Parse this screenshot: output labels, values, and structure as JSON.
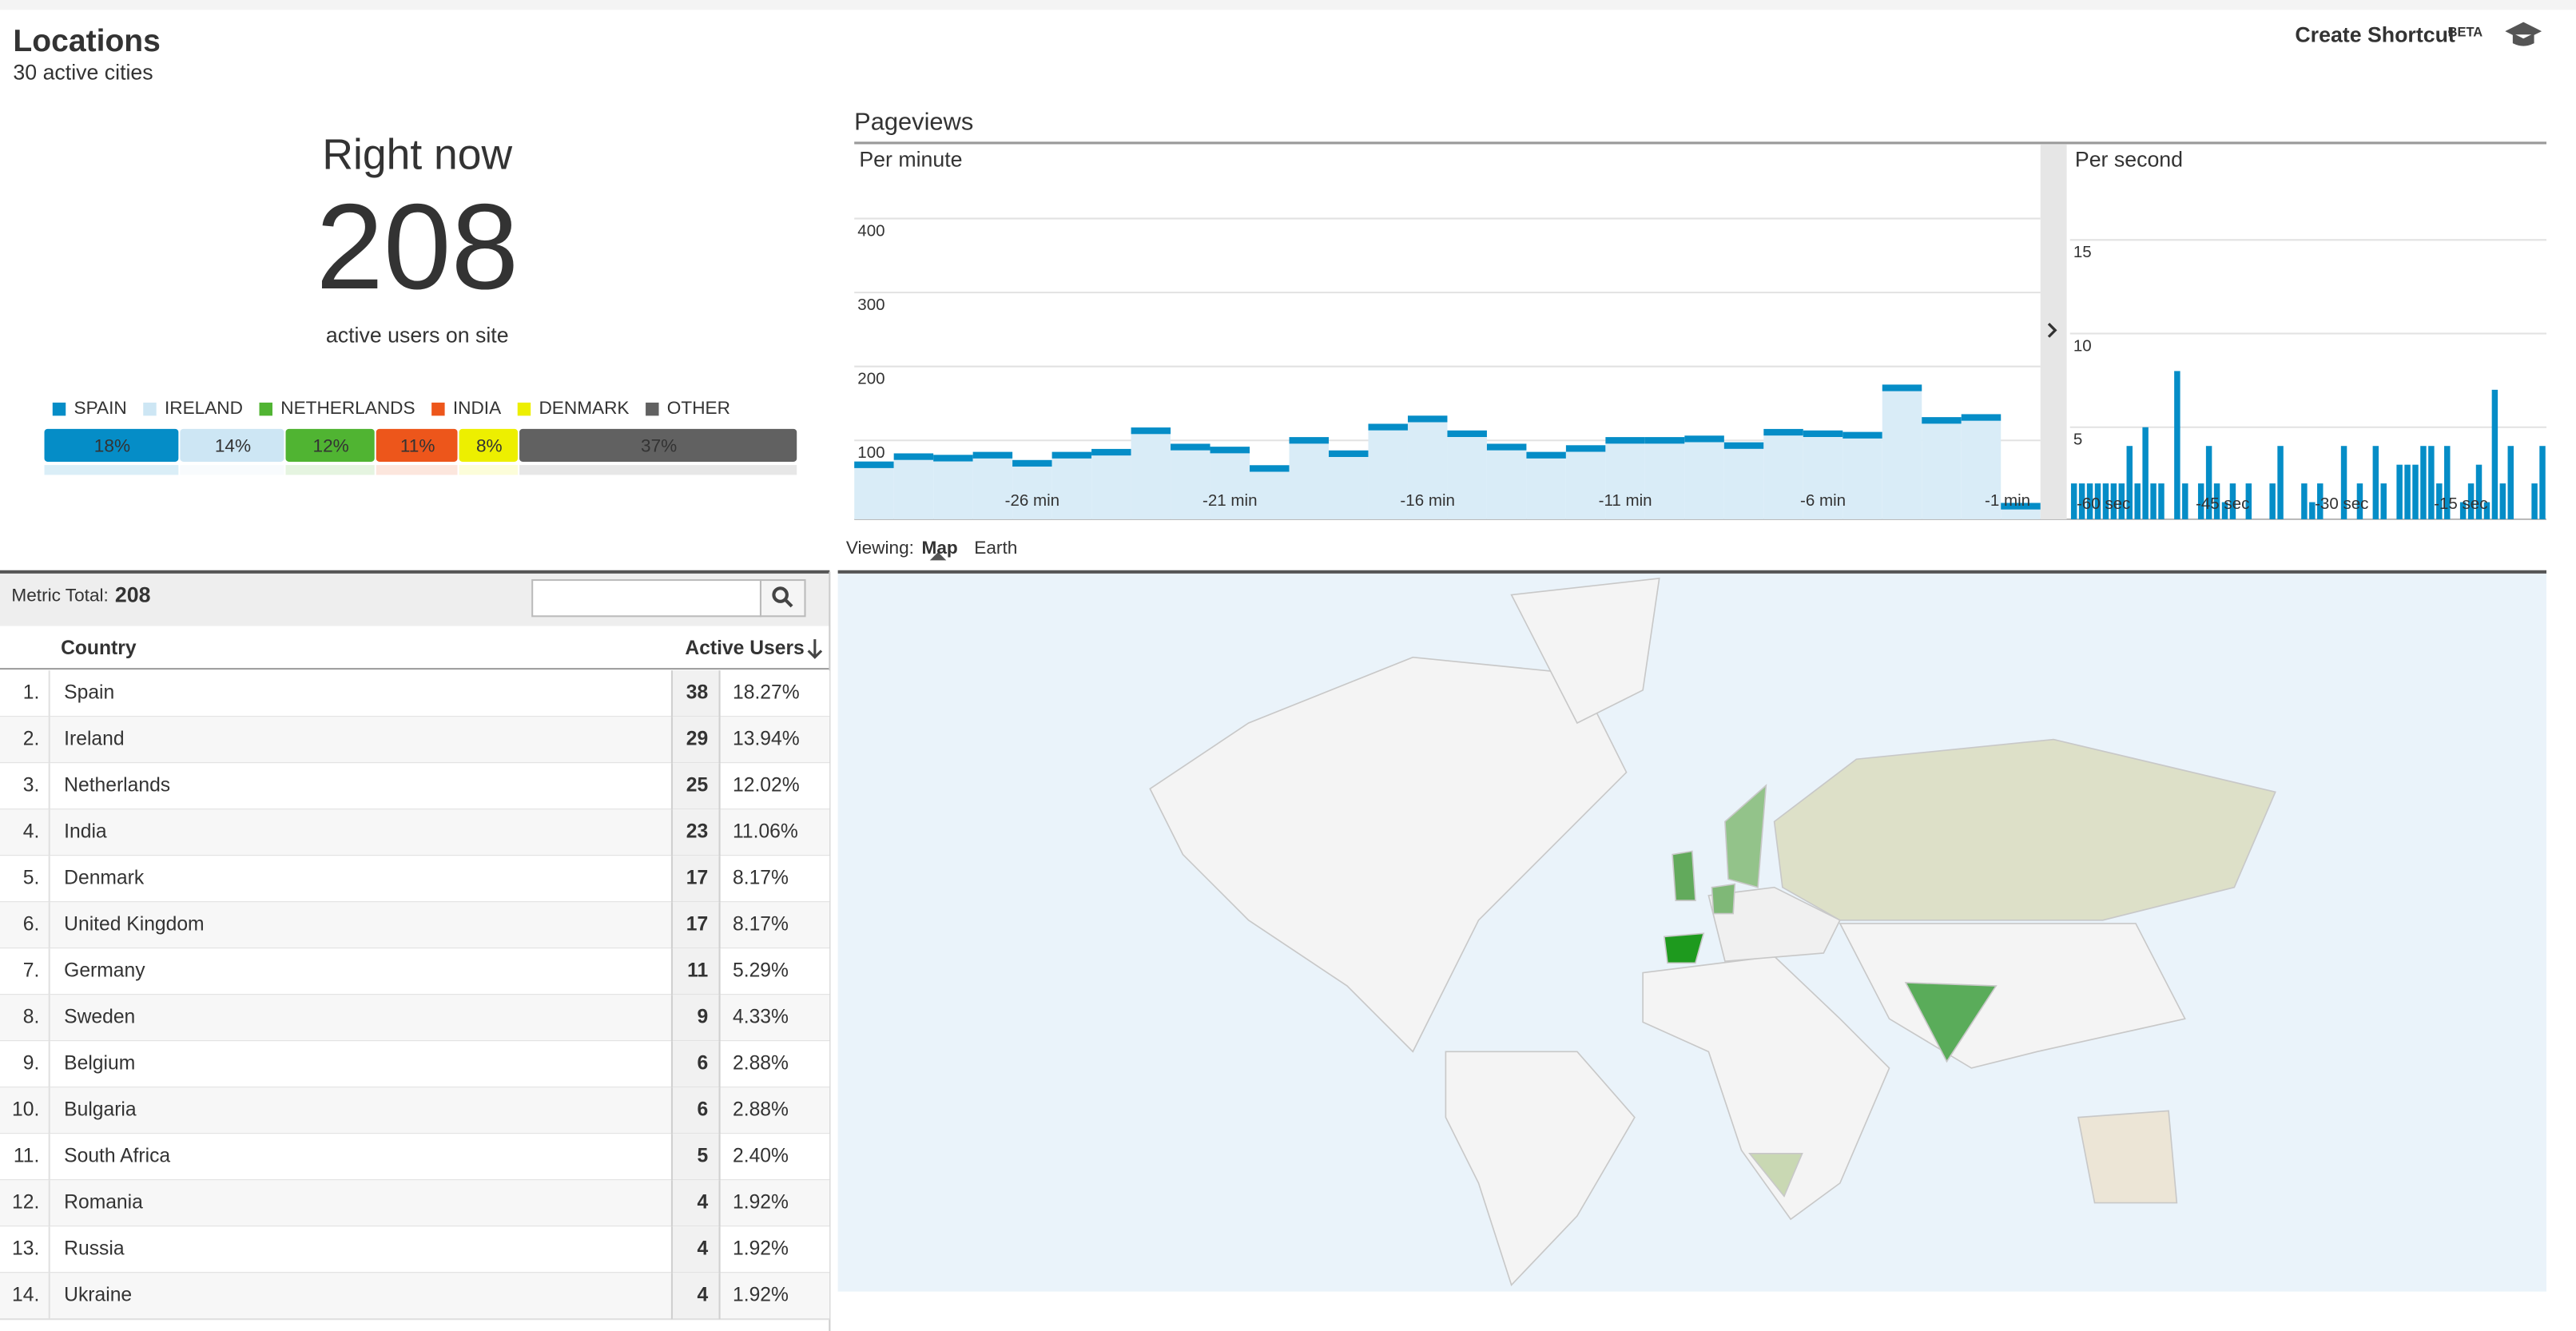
{
  "header": {
    "title": "Locations",
    "subtitle": "30 active cities",
    "shortcut": "Create Shortcut",
    "badge": "BETA"
  },
  "right_now": {
    "heading": "Right now",
    "count": 208,
    "caption": "active users on site"
  },
  "pageviews": {
    "title": "Pageviews"
  },
  "chart_data": [
    {
      "type": "stacked_bar",
      "series": [
        {
          "name": "SPAIN",
          "color": "#058dc7",
          "values": [
            18
          ],
          "value_labels": [
            "18%"
          ]
        },
        {
          "name": "IRELAND",
          "color": "#cde6f4",
          "values": [
            14
          ],
          "value_labels": [
            "14%"
          ]
        },
        {
          "name": "NETHERLANDS",
          "color": "#50b432",
          "values": [
            12
          ],
          "value_labels": [
            "12%"
          ]
        },
        {
          "name": "INDIA",
          "color": "#ed561b",
          "values": [
            11
          ],
          "value_labels": [
            "11%"
          ]
        },
        {
          "name": "DENMARK",
          "color": "#edef00",
          "values": [
            8
          ],
          "value_labels": [
            "8%"
          ]
        },
        {
          "name": "OTHER",
          "color": "#616161",
          "values": [
            37
          ],
          "value_labels": [
            "37%"
          ]
        }
      ]
    },
    {
      "type": "step",
      "title": "Per minute",
      "color": "#058dc7",
      "categories": [
        null,
        null,
        null,
        null,
        "-26 min",
        null,
        null,
        null,
        null,
        "-21 min",
        null,
        null,
        null,
        null,
        "-16 min",
        null,
        null,
        null,
        null,
        "-11 min",
        null,
        null,
        null,
        null,
        "-6 min",
        null,
        null,
        null,
        null,
        "-1 min"
      ],
      "values": [
        67,
        78,
        76,
        80,
        69,
        80,
        84,
        113,
        91,
        87,
        62,
        100,
        82,
        118,
        129,
        109,
        91,
        80,
        89,
        100,
        100,
        102,
        93,
        111,
        109,
        107,
        171,
        127,
        131,
        11
      ],
      "ylim": [
        0,
        500
      ],
      "yticks": [
        100,
        200,
        300,
        400
      ],
      "grid": true
    },
    {
      "type": "bar",
      "title": "Per second",
      "color": "#058dc7",
      "categories": [
        "-60 sec",
        null,
        null,
        null,
        null,
        null,
        null,
        null,
        null,
        null,
        null,
        null,
        null,
        null,
        null,
        "-45 sec",
        null,
        null,
        null,
        null,
        null,
        null,
        null,
        null,
        null,
        null,
        null,
        null,
        null,
        null,
        "-30 sec",
        null,
        null,
        null,
        null,
        null,
        null,
        null,
        null,
        null,
        null,
        null,
        null,
        null,
        null,
        "-15 sec",
        null,
        null,
        null,
        null,
        null,
        null,
        null,
        null,
        null,
        null,
        null,
        null,
        null,
        null
      ],
      "values": [
        2,
        2,
        2,
        2,
        2,
        2,
        2,
        4,
        2,
        5,
        2,
        2,
        0,
        8,
        2,
        0,
        2,
        4,
        2,
        1,
        2,
        0,
        2,
        0,
        0,
        2,
        4,
        0,
        0,
        2,
        1,
        2,
        0,
        0,
        4,
        0,
        2,
        0,
        4,
        2,
        0,
        3,
        3,
        3,
        4,
        4,
        2,
        4,
        0,
        1,
        2,
        3,
        1,
        7,
        2,
        4,
        0,
        0,
        2,
        4
      ],
      "ylim": [
        0,
        20
      ],
      "yticks": [
        5,
        10,
        15
      ],
      "grid": true
    }
  ],
  "map": {
    "viewing_label": "Viewing:",
    "tabs": [
      {
        "label": "Map",
        "selected": true
      },
      {
        "label": "Earth",
        "selected": false
      }
    ]
  },
  "table": {
    "metric_total_label": "Metric Total:",
    "metric_total": 208,
    "columns": [
      "Country",
      "Active Users"
    ],
    "rows": [
      [
        "1.",
        "Spain",
        38,
        "18.27%"
      ],
      [
        "2.",
        "Ireland",
        29,
        "13.94%"
      ],
      [
        "3.",
        "Netherlands",
        25,
        "12.02%"
      ],
      [
        "4.",
        "India",
        23,
        "11.06%"
      ],
      [
        "5.",
        "Denmark",
        17,
        "8.17%"
      ],
      [
        "6.",
        "United Kingdom",
        17,
        "8.17%"
      ],
      [
        "7.",
        "Germany",
        11,
        "5.29%"
      ],
      [
        "8.",
        "Sweden",
        9,
        "4.33%"
      ],
      [
        "9.",
        "Belgium",
        6,
        "2.88%"
      ],
      [
        "10.",
        "Bulgaria",
        6,
        "2.88%"
      ],
      [
        "11.",
        "South Africa",
        5,
        "2.40%"
      ],
      [
        "12.",
        "Romania",
        4,
        "1.92%"
      ],
      [
        "13.",
        "Russia",
        4,
        "1.92%"
      ],
      [
        "14.",
        "Ukraine",
        4,
        "1.92%"
      ]
    ]
  }
}
